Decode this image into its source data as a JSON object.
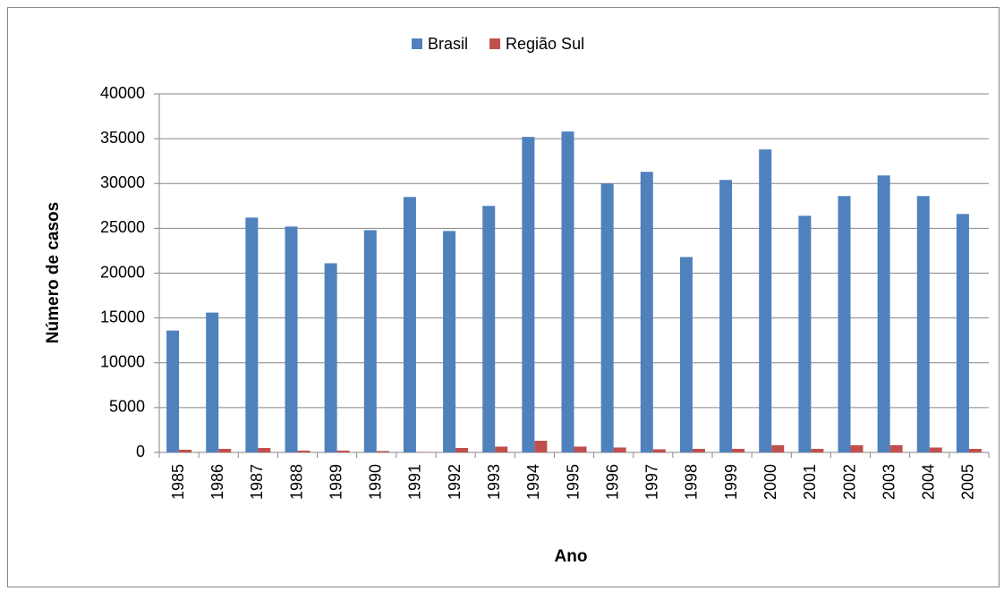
{
  "chart_data": {
    "type": "bar",
    "x_label": "Ano",
    "y_label": "Número de casos",
    "categories": [
      "1985",
      "1986",
      "1987",
      "1988",
      "1989",
      "1990",
      "1991",
      "1992",
      "1993",
      "1994",
      "1995",
      "1996",
      "1997",
      "1998",
      "1999",
      "2000",
      "2001",
      "2002",
      "2003",
      "2004",
      "2005"
    ],
    "series": [
      {
        "name": "Brasil",
        "color": "#4f81bd",
        "values": [
          13600,
          15600,
          26200,
          25200,
          21100,
          24800,
          28500,
          24700,
          27500,
          35200,
          35800,
          30000,
          31300,
          21800,
          30400,
          33800,
          26400,
          28600,
          30900,
          28600,
          26600
        ]
      },
      {
        "name": "Região Sul",
        "color": "#c0504d",
        "values": [
          300,
          400,
          500,
          200,
          200,
          150,
          50,
          500,
          650,
          1300,
          650,
          550,
          350,
          400,
          400,
          800,
          400,
          800,
          800,
          550,
          400
        ]
      }
    ],
    "ylim": [
      0,
      40000
    ],
    "yticks": [
      0,
      5000,
      10000,
      15000,
      20000,
      25000,
      30000,
      35000,
      40000
    ],
    "grid": true,
    "legend": "top"
  }
}
